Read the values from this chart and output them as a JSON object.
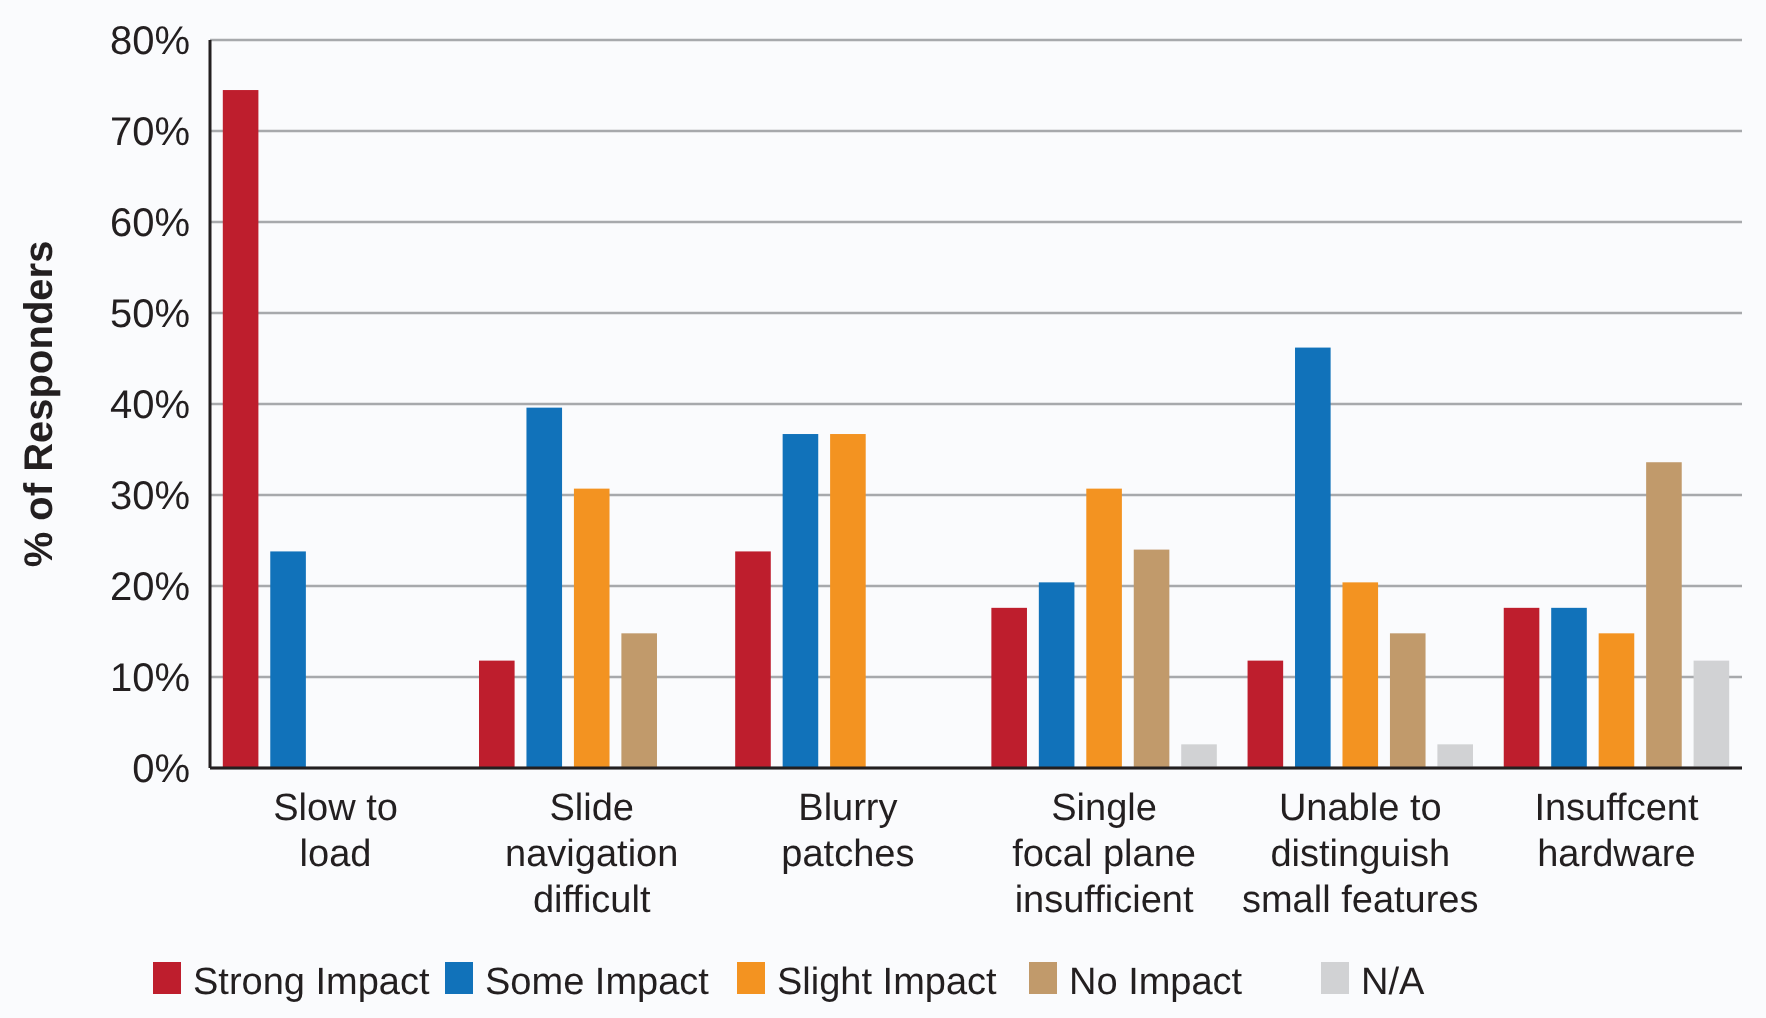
{
  "chart_data": {
    "type": "bar",
    "ylabel": "% of Responders",
    "categories": [
      "Slow to\nload",
      "Slide\nnavigation\ndifficult",
      "Blurry\npatches",
      "Single\nfocal plane\ninsufficient",
      "Unable to\ndistinguish\nsmall features",
      "Insuffcent\nhardware"
    ],
    "series": [
      {
        "name": "Strong Impact",
        "color": "#be1e2d",
        "values": [
          74.5,
          11.8,
          23.8,
          17.6,
          11.8,
          17.6
        ]
      },
      {
        "name": "Some Impact",
        "color": "#1172ba",
        "values": [
          23.8,
          39.6,
          36.7,
          20.4,
          46.2,
          17.6
        ]
      },
      {
        "name": "Slight Impact",
        "color": "#f39321",
        "values": [
          null,
          30.7,
          36.7,
          30.7,
          20.4,
          14.8
        ]
      },
      {
        "name": "No Impact",
        "color": "#c19a6b",
        "values": [
          null,
          14.8,
          null,
          24,
          14.8,
          33.6
        ]
      },
      {
        "name": "N/A",
        "color": "#d1d2d4",
        "values": [
          null,
          null,
          null,
          2.6,
          2.6,
          11.8
        ]
      }
    ],
    "ylim": [
      0,
      80
    ],
    "yticks": [
      {
        "value": 0,
        "label": "0%"
      },
      {
        "value": 10,
        "label": "10%"
      },
      {
        "value": 20,
        "label": "20%"
      },
      {
        "value": 30,
        "label": "30%"
      },
      {
        "value": 40,
        "label": "40%"
      },
      {
        "value": 50,
        "label": "50%"
      },
      {
        "value": 60,
        "label": "60%"
      },
      {
        "value": 70,
        "label": "70%"
      },
      {
        "value": 80,
        "label": "80%"
      }
    ],
    "grid": "y",
    "legend": "bottom"
  }
}
